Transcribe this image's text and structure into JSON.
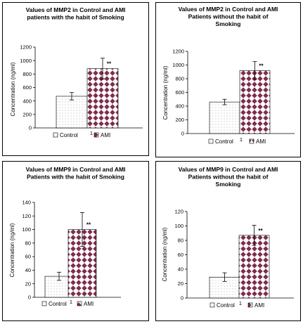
{
  "colors": {
    "control_fill": "#ffffff",
    "control_dots": "#9a9a9a",
    "ami_fill": "#ffffff",
    "ami_diamond": "#7d2e4c",
    "axis": "#000000"
  },
  "chart_data": [
    {
      "type": "bar",
      "title_lines": [
        "Values of MMP2 in Control and AMI",
        "patients with the habit of Smoking"
      ],
      "ylabel": "Concentration (ng/ml)",
      "xlabel": "",
      "ylim": [
        0,
        1200
      ],
      "yticks": [
        0,
        200,
        400,
        600,
        800,
        1000,
        1200
      ],
      "categories": [
        "Control",
        "AMI"
      ],
      "values": [
        470,
        880
      ],
      "errors": [
        55,
        155
      ],
      "annotations": [
        "",
        "**"
      ],
      "x_tick_label": "1",
      "legend": [
        "Control",
        "AMI"
      ],
      "legend_position": "bottom",
      "grid": false
    },
    {
      "type": "bar",
      "title_lines": [
        "Values of MMP2 in Control and AMI",
        "Patients without the habit of",
        "Smoking"
      ],
      "ylabel": "Concentration (ng/ml)",
      "xlabel": "",
      "ylim": [
        0,
        1200
      ],
      "yticks": [
        0,
        200,
        400,
        600,
        800,
        1000,
        1200
      ],
      "categories": [
        "Control",
        "AMI"
      ],
      "values": [
        460,
        920
      ],
      "errors": [
        40,
        130
      ],
      "annotations": [
        "",
        "**"
      ],
      "x_tick_label": "1",
      "legend": [
        "Control",
        "AMI"
      ],
      "legend_position": "bottom",
      "grid": false
    },
    {
      "type": "bar",
      "title_lines": [
        "Values of MMP9 in Control and AMI",
        "Patients with the habit of Smoking"
      ],
      "ylabel": "Concentration (ng/ml)",
      "xlabel": "",
      "ylim": [
        0,
        140
      ],
      "yticks": [
        0,
        20,
        40,
        60,
        80,
        100,
        120,
        140
      ],
      "categories": [
        "Control",
        "AMI"
      ],
      "values": [
        31,
        100
      ],
      "errors": [
        6,
        25
      ],
      "annotations": [
        "",
        "**"
      ],
      "x_tick_label": "1",
      "legend": [
        "Control",
        "AMI"
      ],
      "legend_position": "bottom",
      "grid": false
    },
    {
      "type": "bar",
      "title_lines": [
        "Values of MMP9 in Control and AMI",
        "Patients without the habit of",
        "Smoking"
      ],
      "ylabel": "Concentration (ng/ml)",
      "xlabel": "",
      "ylim": [
        0,
        120
      ],
      "yticks": [
        0,
        20,
        40,
        60,
        80,
        100,
        120
      ],
      "categories": [
        "Control",
        "AMI"
      ],
      "values": [
        29,
        87
      ],
      "errors": [
        6,
        14
      ],
      "annotations": [
        "",
        "**"
      ],
      "x_tick_label": "1",
      "legend": [
        "Control",
        "AMI"
      ],
      "legend_position": "bottom",
      "grid": false
    }
  ]
}
